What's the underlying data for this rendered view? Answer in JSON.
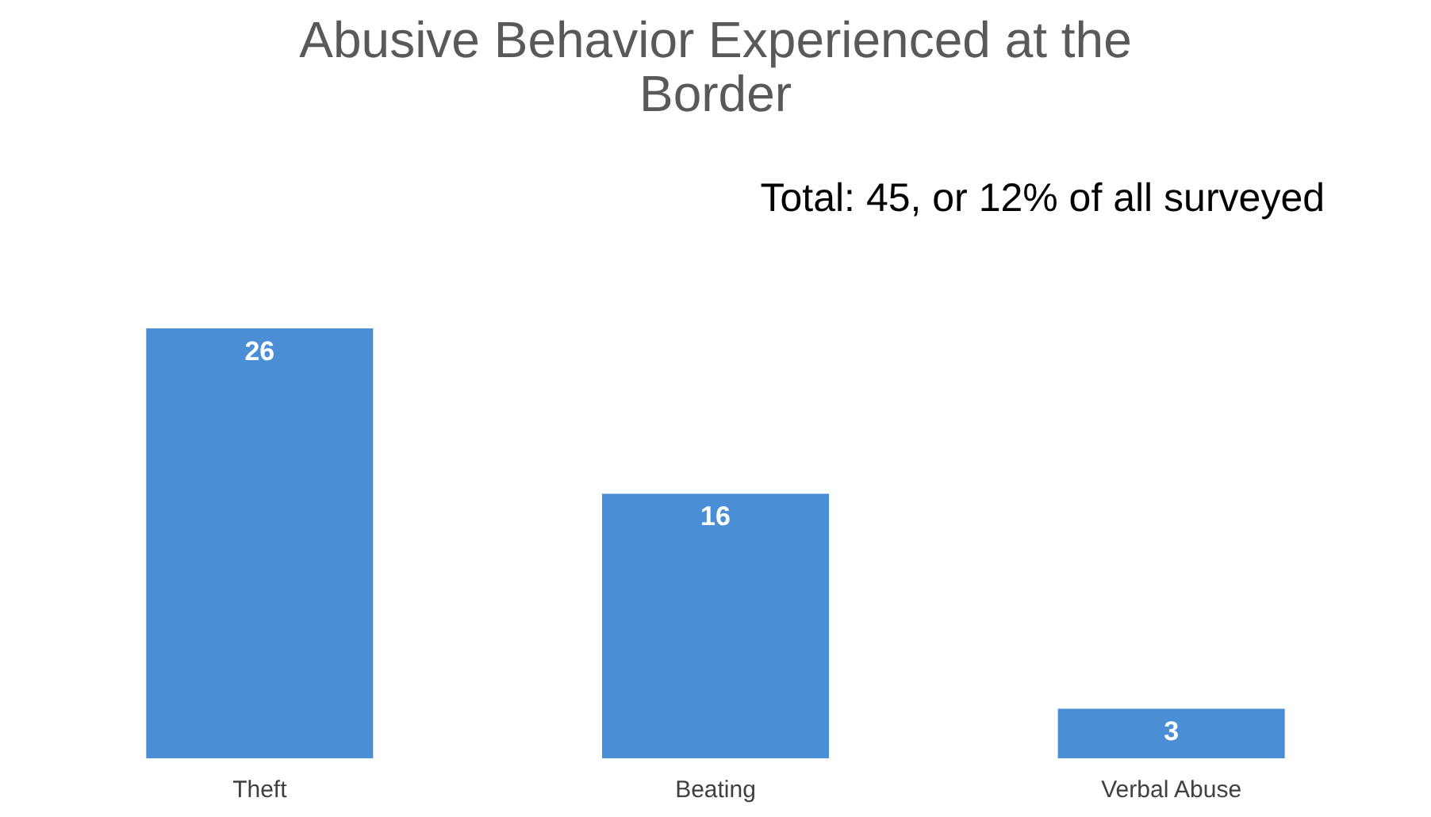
{
  "chart_data": {
    "type": "bar",
    "title": [
      "Abusive Behavior Experienced at the",
      "Border"
    ],
    "categories": [
      "Theft",
      "Beating",
      "Verbal Abuse"
    ],
    "values": [
      26,
      16,
      3
    ],
    "color": "#4a8fd6",
    "data_labels": true,
    "grid": false,
    "annotations": [
      "Total: 45, or 12% of all surveyed"
    ]
  }
}
